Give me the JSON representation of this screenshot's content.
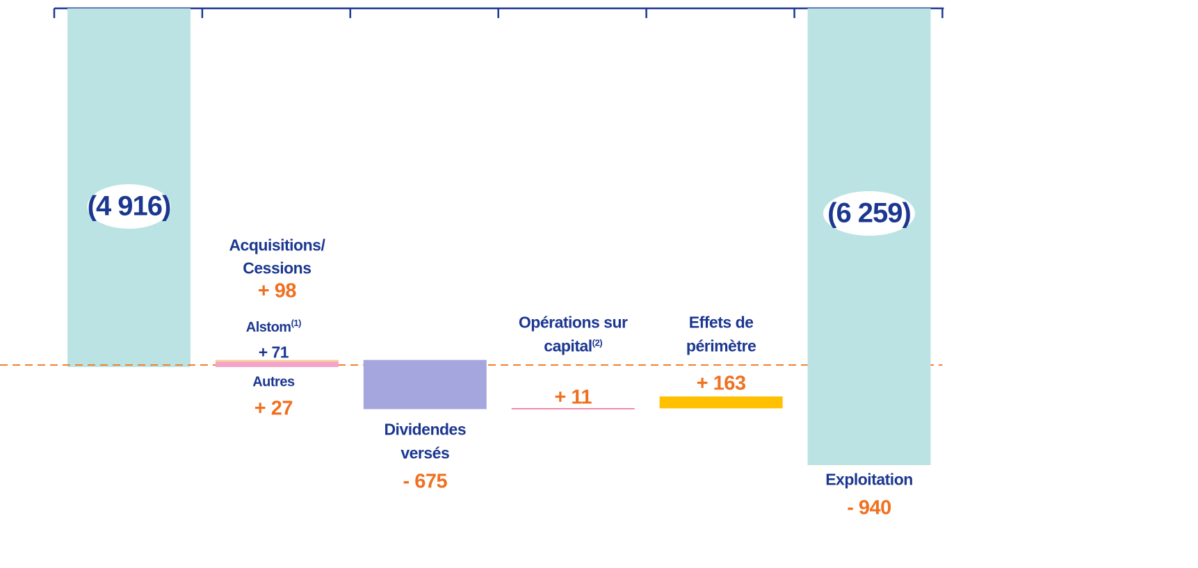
{
  "chart_data": {
    "type": "waterfall",
    "ylim": [
      -7670,
      0
    ],
    "start": {
      "value": -4916,
      "label": "(4 916)",
      "color": "#bce3e3"
    },
    "end": {
      "value": -6259,
      "label": "(6 259)",
      "color": "#bce3e3"
    },
    "steps": [
      {
        "name": [
          "Acquisitions/",
          "Cessions"
        ],
        "value": 98,
        "value_label": "+ 98",
        "parts": [
          {
            "name": "Alstom",
            "note": "(1)",
            "value": 71,
            "value_label": "+ 71",
            "color": "#f4a3c9"
          },
          {
            "name": "Autres",
            "value": 27,
            "value_label": "+ 27",
            "color": "#f6cf9e"
          }
        ]
      },
      {
        "name": [
          "Dividendes",
          "versés"
        ],
        "value": -675,
        "value_label": "- 675",
        "color": "#a6a6de"
      },
      {
        "name": [
          "Opérations sur",
          "capital"
        ],
        "note": "(2)",
        "value": 11,
        "value_label": "+ 11",
        "color": "#e8336e"
      },
      {
        "name": [
          "Effets de",
          "périmètre"
        ],
        "value": 163,
        "value_label": "+ 163",
        "color": "#ffc000"
      },
      {
        "name": [
          "Exploitation"
        ],
        "value": -940,
        "value_label": "- 940",
        "color": "#92d050"
      }
    ],
    "reference_line_color": "#f08030"
  }
}
